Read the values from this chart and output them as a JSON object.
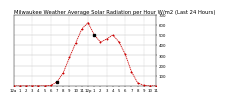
{
  "title": "Milwaukee Weather Average Solar Radiation per Hour W/m2 (Last 24 Hours)",
  "hours": [
    0,
    1,
    2,
    3,
    4,
    5,
    6,
    7,
    8,
    9,
    10,
    11,
    12,
    13,
    14,
    15,
    16,
    17,
    18,
    19,
    20,
    21,
    22,
    23
  ],
  "values": [
    0,
    0,
    0,
    0,
    0,
    1,
    5,
    40,
    130,
    280,
    420,
    560,
    620,
    500,
    430,
    460,
    500,
    430,
    310,
    140,
    30,
    5,
    0,
    0
  ],
  "line_color": "#cc0000",
  "marker_color": "#000000",
  "bg_color": "#ffffff",
  "grid_color": "#999999",
  "ylim": [
    0,
    700
  ],
  "yticks": [
    100,
    200,
    300,
    400,
    500,
    600,
    700
  ],
  "title_fontsize": 3.8,
  "tick_fontsize": 2.8,
  "line_width": 0.6,
  "marker_size": 1.0,
  "vgrid_positions": [
    0,
    3,
    6,
    9,
    12,
    15,
    18,
    21,
    23
  ]
}
